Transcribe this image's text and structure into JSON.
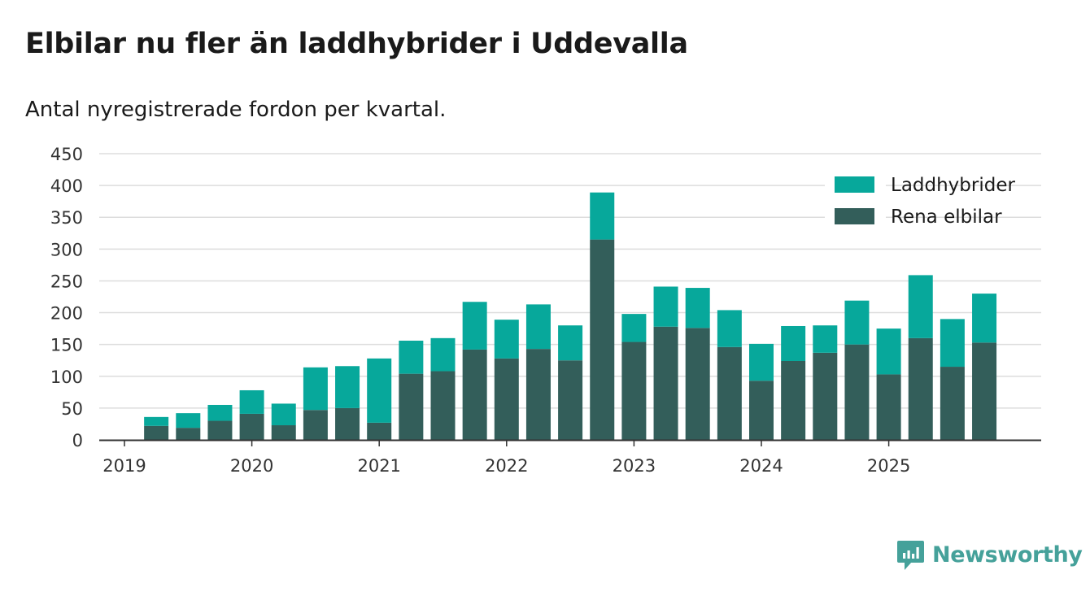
{
  "title": "Elbilar nu fler än laddhybrider i Uddevalla",
  "subtitle": "Antal nyregistrerade fordon per kvartal.",
  "brand": "Newsworthy",
  "colors": {
    "laddhybrider": "#07a89b",
    "rena_elbilar": "#335e5a",
    "grid": "#dddddd",
    "axis": "#333333",
    "brand": "#45a19a"
  },
  "chart_data": {
    "type": "bar",
    "stacked": true,
    "ylim": [
      0,
      450
    ],
    "yticks": [
      "0",
      "50",
      "100",
      "150",
      "200",
      "250",
      "300",
      "350",
      "400",
      "450"
    ],
    "xticks": [
      "2019",
      "2020",
      "2021",
      "2022",
      "2023",
      "2024",
      "2025"
    ],
    "xlabel": "",
    "ylabel": "",
    "legend_position": "top-right",
    "categories": [
      "2019 Q2",
      "2019 Q3",
      "2019 Q4",
      "2020 Q1",
      "2020 Q2",
      "2020 Q3",
      "2020 Q4",
      "2021 Q1",
      "2021 Q2",
      "2021 Q3",
      "2021 Q4",
      "2022 Q1",
      "2022 Q2",
      "2022 Q3",
      "2022 Q4",
      "2023 Q1",
      "2023 Q2",
      "2023 Q3",
      "2023 Q4",
      "2024 Q1",
      "2024 Q2",
      "2024 Q3",
      "2024 Q4",
      "2025 Q1",
      "2025 Q2",
      "2025 Q3",
      "2025 Q4"
    ],
    "series": [
      {
        "name": "Rena elbilar",
        "values": [
          22,
          19,
          30,
          41,
          23,
          47,
          50,
          27,
          104,
          108,
          142,
          128,
          143,
          125,
          315,
          154,
          178,
          176,
          146,
          93,
          124,
          137,
          150,
          103,
          160,
          115,
          153
        ]
      },
      {
        "name": "Laddhybrider",
        "values": [
          14,
          23,
          25,
          37,
          34,
          67,
          66,
          101,
          52,
          52,
          75,
          61,
          70,
          55,
          74,
          44,
          63,
          63,
          58,
          58,
          55,
          43,
          69,
          72,
          99,
          75,
          77
        ]
      }
    ]
  }
}
